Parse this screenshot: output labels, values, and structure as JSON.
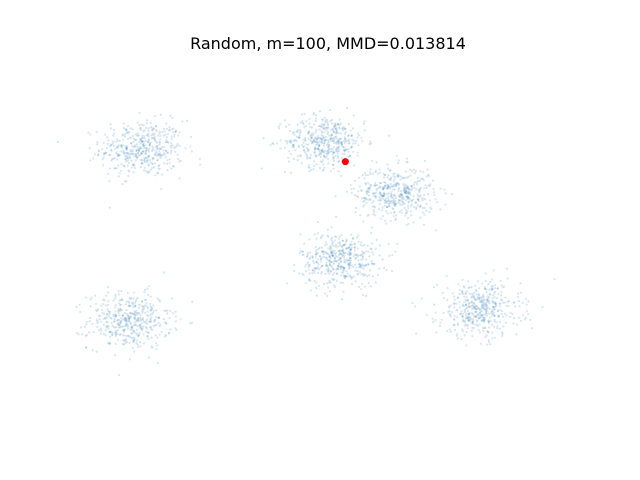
{
  "chart_data": {
    "type": "scatter",
    "title": "Random, m=100, MMD=0.013814",
    "axes_visible": false,
    "grid": false,
    "legend": "none",
    "xlim": [
      0,
      10
    ],
    "ylim": [
      0,
      10
    ],
    "series": [
      {
        "role": "samples",
        "color": "#1f77b4",
        "alpha": 0.18,
        "points_per_cluster": 450,
        "clusters": [
          {
            "cx": 1.25,
            "cy": 7.55,
            "sx": 0.42,
            "sy": 0.38
          },
          {
            "cx": 1.0,
            "cy": 2.9,
            "sx": 0.42,
            "sy": 0.38
          },
          {
            "cx": 4.95,
            "cy": 7.75,
            "sx": 0.4,
            "sy": 0.35
          },
          {
            "cx": 6.35,
            "cy": 6.35,
            "sx": 0.4,
            "sy": 0.35
          },
          {
            "cx": 5.25,
            "cy": 4.55,
            "sx": 0.4,
            "sy": 0.37
          },
          {
            "cx": 8.05,
            "cy": 3.2,
            "sx": 0.42,
            "sy": 0.38
          }
        ]
      },
      {
        "role": "selected",
        "color": "#ff0000",
        "points": [
          {
            "x": 5.35,
            "y": 7.2
          }
        ]
      }
    ]
  }
}
